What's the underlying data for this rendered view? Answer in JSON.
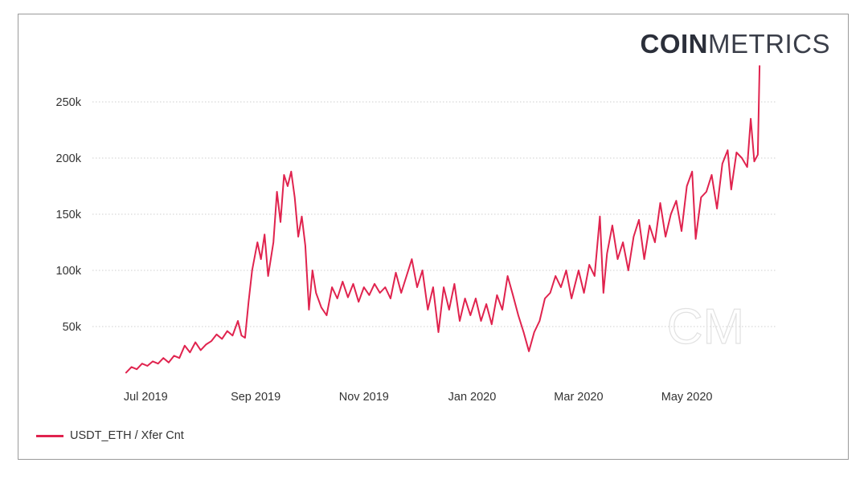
{
  "logo": {
    "bold": "COIN",
    "light": "METRICS",
    "watermark": "CM"
  },
  "colors": {
    "line": "#e0234e",
    "grid": "#cfcfcf",
    "frame": "#9a9a9a"
  },
  "chart_data": {
    "type": "line",
    "title": "",
    "xlabel": "",
    "ylabel": "",
    "ylim": [
      0,
      285000
    ],
    "xlim": [
      "2019-06-01",
      "2020-06-20"
    ],
    "y_ticks": [
      {
        "value": 50000,
        "label": "50k"
      },
      {
        "value": 100000,
        "label": "100k"
      },
      {
        "value": 150000,
        "label": "150k"
      },
      {
        "value": 200000,
        "label": "200k"
      },
      {
        "value": 250000,
        "label": "250k"
      }
    ],
    "x_ticks": [
      {
        "date": "2019-07-01",
        "label": "Jul 2019"
      },
      {
        "date": "2019-09-01",
        "label": "Sep 2019"
      },
      {
        "date": "2019-11-01",
        "label": "Nov 2019"
      },
      {
        "date": "2020-01-01",
        "label": "Jan 2020"
      },
      {
        "date": "2020-03-01",
        "label": "Mar 2020"
      },
      {
        "date": "2020-05-01",
        "label": "May 2020"
      }
    ],
    "grid": "horizontal-dotted",
    "legend_position": "bottom-left",
    "series": [
      {
        "name": "USDT_ETH / Xfer Cnt",
        "points": [
          [
            "2019-06-20",
            9000
          ],
          [
            "2019-06-23",
            14000
          ],
          [
            "2019-06-26",
            12000
          ],
          [
            "2019-06-29",
            17000
          ],
          [
            "2019-07-02",
            15000
          ],
          [
            "2019-07-05",
            19000
          ],
          [
            "2019-07-08",
            17000
          ],
          [
            "2019-07-11",
            22000
          ],
          [
            "2019-07-14",
            18000
          ],
          [
            "2019-07-17",
            24000
          ],
          [
            "2019-07-20",
            22000
          ],
          [
            "2019-07-23",
            33000
          ],
          [
            "2019-07-26",
            27000
          ],
          [
            "2019-07-29",
            36000
          ],
          [
            "2019-08-01",
            29000
          ],
          [
            "2019-08-04",
            34000
          ],
          [
            "2019-08-07",
            37000
          ],
          [
            "2019-08-10",
            43000
          ],
          [
            "2019-08-13",
            39000
          ],
          [
            "2019-08-16",
            46000
          ],
          [
            "2019-08-19",
            42000
          ],
          [
            "2019-08-22",
            55000
          ],
          [
            "2019-08-24",
            42000
          ],
          [
            "2019-08-26",
            40000
          ],
          [
            "2019-08-28",
            72000
          ],
          [
            "2019-08-30",
            100000
          ],
          [
            "2019-09-02",
            125000
          ],
          [
            "2019-09-04",
            110000
          ],
          [
            "2019-09-06",
            132000
          ],
          [
            "2019-09-08",
            95000
          ],
          [
            "2019-09-11",
            125000
          ],
          [
            "2019-09-13",
            170000
          ],
          [
            "2019-09-15",
            143000
          ],
          [
            "2019-09-17",
            185000
          ],
          [
            "2019-09-19",
            175000
          ],
          [
            "2019-09-21",
            188000
          ],
          [
            "2019-09-23",
            165000
          ],
          [
            "2019-09-25",
            130000
          ],
          [
            "2019-09-27",
            148000
          ],
          [
            "2019-09-29",
            122000
          ],
          [
            "2019-10-01",
            65000
          ],
          [
            "2019-10-03",
            100000
          ],
          [
            "2019-10-05",
            80000
          ],
          [
            "2019-10-08",
            67000
          ],
          [
            "2019-10-11",
            60000
          ],
          [
            "2019-10-14",
            85000
          ],
          [
            "2019-10-17",
            75000
          ],
          [
            "2019-10-20",
            90000
          ],
          [
            "2019-10-23",
            76000
          ],
          [
            "2019-10-26",
            88000
          ],
          [
            "2019-10-29",
            72000
          ],
          [
            "2019-11-01",
            85000
          ],
          [
            "2019-11-04",
            78000
          ],
          [
            "2019-11-07",
            88000
          ],
          [
            "2019-11-10",
            80000
          ],
          [
            "2019-11-13",
            85000
          ],
          [
            "2019-11-16",
            75000
          ],
          [
            "2019-11-19",
            98000
          ],
          [
            "2019-11-22",
            80000
          ],
          [
            "2019-11-25",
            95000
          ],
          [
            "2019-11-28",
            110000
          ],
          [
            "2019-12-01",
            85000
          ],
          [
            "2019-12-04",
            100000
          ],
          [
            "2019-12-07",
            65000
          ],
          [
            "2019-12-10",
            85000
          ],
          [
            "2019-12-13",
            45000
          ],
          [
            "2019-12-16",
            85000
          ],
          [
            "2019-12-19",
            65000
          ],
          [
            "2019-12-22",
            88000
          ],
          [
            "2019-12-25",
            55000
          ],
          [
            "2019-12-28",
            75000
          ],
          [
            "2019-12-31",
            60000
          ],
          [
            "2020-01-03",
            75000
          ],
          [
            "2020-01-06",
            55000
          ],
          [
            "2020-01-09",
            70000
          ],
          [
            "2020-01-12",
            52000
          ],
          [
            "2020-01-15",
            78000
          ],
          [
            "2020-01-18",
            65000
          ],
          [
            "2020-01-21",
            95000
          ],
          [
            "2020-01-24",
            78000
          ],
          [
            "2020-01-27",
            60000
          ],
          [
            "2020-01-30",
            45000
          ],
          [
            "2020-02-02",
            28000
          ],
          [
            "2020-02-05",
            45000
          ],
          [
            "2020-02-08",
            55000
          ],
          [
            "2020-02-11",
            75000
          ],
          [
            "2020-02-14",
            80000
          ],
          [
            "2020-02-17",
            95000
          ],
          [
            "2020-02-20",
            85000
          ],
          [
            "2020-02-23",
            100000
          ],
          [
            "2020-02-26",
            75000
          ],
          [
            "2020-03-01",
            100000
          ],
          [
            "2020-03-04",
            80000
          ],
          [
            "2020-03-07",
            105000
          ],
          [
            "2020-03-10",
            95000
          ],
          [
            "2020-03-13",
            148000
          ],
          [
            "2020-03-15",
            80000
          ],
          [
            "2020-03-17",
            115000
          ],
          [
            "2020-03-20",
            140000
          ],
          [
            "2020-03-23",
            110000
          ],
          [
            "2020-03-26",
            125000
          ],
          [
            "2020-03-29",
            100000
          ],
          [
            "2020-04-01",
            130000
          ],
          [
            "2020-04-04",
            145000
          ],
          [
            "2020-04-07",
            110000
          ],
          [
            "2020-04-10",
            140000
          ],
          [
            "2020-04-13",
            125000
          ],
          [
            "2020-04-16",
            160000
          ],
          [
            "2020-04-19",
            130000
          ],
          [
            "2020-04-22",
            150000
          ],
          [
            "2020-04-25",
            162000
          ],
          [
            "2020-04-28",
            135000
          ],
          [
            "2020-05-01",
            175000
          ],
          [
            "2020-05-04",
            188000
          ],
          [
            "2020-05-06",
            128000
          ],
          [
            "2020-05-09",
            165000
          ],
          [
            "2020-05-12",
            170000
          ],
          [
            "2020-05-15",
            185000
          ],
          [
            "2020-05-18",
            155000
          ],
          [
            "2020-05-21",
            195000
          ],
          [
            "2020-05-24",
            207000
          ],
          [
            "2020-05-26",
            172000
          ],
          [
            "2020-05-29",
            205000
          ],
          [
            "2020-06-01",
            200000
          ],
          [
            "2020-06-04",
            192000
          ],
          [
            "2020-06-06",
            235000
          ],
          [
            "2020-06-08",
            197000
          ],
          [
            "2020-06-10",
            203000
          ],
          [
            "2020-06-11",
            282000
          ]
        ]
      }
    ]
  }
}
